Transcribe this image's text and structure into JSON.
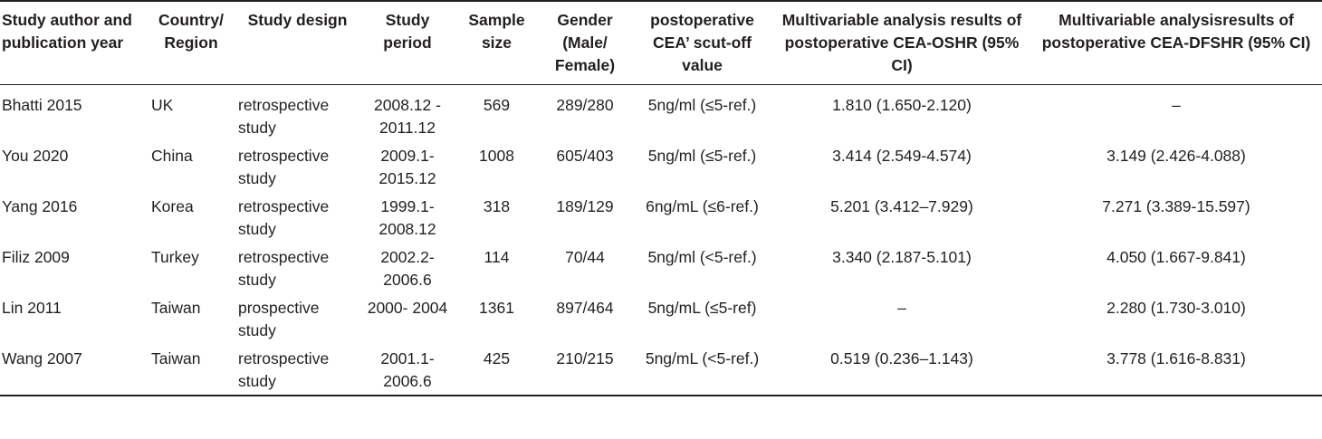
{
  "headers": {
    "author": "Study author and publication year",
    "country": "Country/ Region",
    "design": "Study design",
    "period": "Study period",
    "sample": "Sample size",
    "gender": "Gender (Male/ Female)",
    "cutoff": "postoperative CEA’ scut-off value",
    "os": "Multivariable analysis results of postoperative CEA-OSHR (95% CI)",
    "dfs": "Multivariable analysisresults of postoperative CEA-DFSHR (95% CI)"
  },
  "rows": [
    {
      "author": "Bhatti 2015",
      "country": "UK",
      "design": "retrospective study",
      "period": "2008.12 - 2011.12",
      "sample": "569",
      "gender": "289/280",
      "cutoff": "5ng/ml (≤5-ref.)",
      "os": "1.810 (1.650-2.120)",
      "dfs": "–"
    },
    {
      "author": "You 2020",
      "country": "China",
      "design": "retrospective study",
      "period": "2009.1- 2015.12",
      "sample": "1008",
      "gender": "605/403",
      "cutoff": "5ng/ml (≤5-ref.)",
      "os": "3.414 (2.549-4.574)",
      "dfs": "3.149 (2.426-4.088)"
    },
    {
      "author": "Yang 2016",
      "country": "Korea",
      "design": "retrospective study",
      "period": "1999.1- 2008.12",
      "sample": "318",
      "gender": "189/129",
      "cutoff": "6ng/mL (≤6-ref.)",
      "os": "5.201 (3.412–7.929)",
      "dfs": "7.271 (3.389-15.597)"
    },
    {
      "author": "Filiz 2009",
      "country": "Turkey",
      "design": "retrospective study",
      "period": "2002.2- 2006.6",
      "sample": "114",
      "gender": "70/44",
      "cutoff": "5ng/ml (<5-ref.)",
      "os": "3.340 (2.187-5.101)",
      "dfs": "4.050 (1.667-9.841)"
    },
    {
      "author": "Lin 2011",
      "country": "Taiwan",
      "design": "prospective study",
      "period": "2000- 2004",
      "sample": "1361",
      "gender": "897/464",
      "cutoff": "5ng/mL (≤5-ref)",
      "os": "–",
      "dfs": "2.280 (1.730-3.010)"
    },
    {
      "author": "Wang 2007",
      "country": "Taiwan",
      "design": "retrospective study",
      "period": "2001.1- 2006.6",
      "sample": "425",
      "gender": "210/215",
      "cutoff": "5ng/mL (<5-ref.)",
      "os": "0.519 (0.236–1.143)",
      "dfs": "3.778 (1.616-8.831)"
    }
  ]
}
